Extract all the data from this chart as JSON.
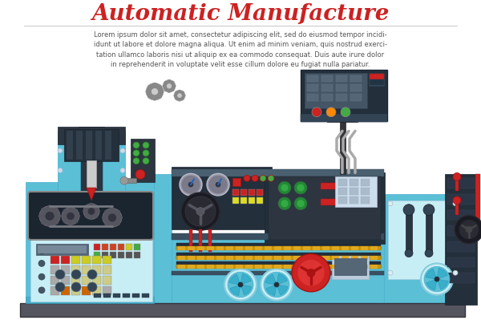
{
  "title": "Automatic Manufacture",
  "title_color": "#cc2222",
  "title_fontsize": 20,
  "lorem_text": "Lorem ipsum dolor sit amet, consectetur adipiscing elit, sed do eiusmod tempor incidi-\nidunt ut labore et dolore magna aliqua. Ut enim ad minim veniam, quis nostrud exerci-\ntation ullamco laboris nisi ut aliquip ex ea commodo consequat. Duis aute irure dolor\nin reprehenderit in voluptate velit esse cillum dolore eu fugiat nulla pariatur.",
  "bg_color": "#ffffff",
  "teal": "#5bbfd6",
  "teal_light": "#a8dce8",
  "teal_lighter": "#c8eef5",
  "dark": "#2d3540",
  "dark2": "#3d4f60",
  "dark3": "#232f3a",
  "gray_dark": "#4a4a52",
  "gray": "#888899",
  "gold": "#c8960a",
  "gold2": "#e0a820",
  "red": "#cc2222",
  "green": "#44aa44",
  "orange": "#ff8800",
  "white": "#ffffff",
  "base": "#555560",
  "gear_color": "#aaaaaa",
  "gear_dark": "#888888"
}
